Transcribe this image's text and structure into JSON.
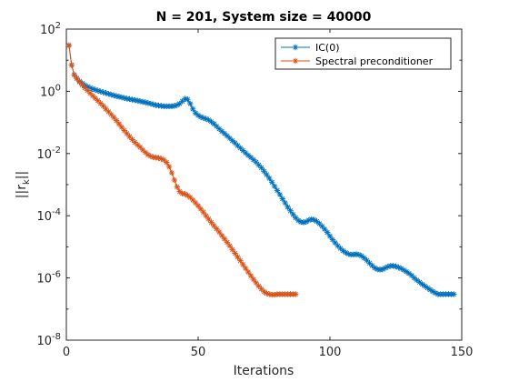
{
  "chart_data": {
    "type": "line",
    "title": "N = 201, System size = 40000",
    "xlabel": "Iterations",
    "ylabel": "||r_k||",
    "xlim": [
      0,
      150
    ],
    "ylim": [
      1e-08,
      100
    ],
    "y_scale": "log",
    "grid": false,
    "legend_position": "top-right",
    "x_ticks": [
      0,
      50,
      100,
      150
    ],
    "y_tick_exponents": [
      -8,
      -6,
      -4,
      -2,
      0,
      2
    ],
    "series": [
      {
        "name": "IC(0)",
        "color": "#0072BD",
        "marker": "asterisk",
        "x": [
          1,
          2,
          3,
          4,
          5,
          6,
          7,
          8,
          9,
          10,
          11,
          12,
          13,
          14,
          15,
          16,
          17,
          18,
          19,
          20,
          21,
          22,
          23,
          24,
          25,
          26,
          27,
          28,
          29,
          30,
          31,
          32,
          33,
          34,
          35,
          36,
          37,
          38,
          39,
          40,
          41,
          42,
          43,
          44,
          45,
          46,
          47,
          48,
          49,
          50,
          51,
          52,
          53,
          54,
          55,
          56,
          57,
          58,
          59,
          60,
          61,
          62,
          63,
          64,
          65,
          66,
          67,
          68,
          69,
          70,
          71,
          72,
          73,
          74,
          75,
          76,
          77,
          78,
          79,
          80,
          81,
          82,
          83,
          84,
          85,
          86,
          87,
          88,
          89,
          90,
          91,
          92,
          93,
          94,
          95,
          96,
          97,
          98,
          99,
          100,
          101,
          102,
          103,
          104,
          105,
          106,
          107,
          108,
          109,
          110,
          111,
          112,
          113,
          114,
          115,
          116,
          117,
          118,
          119,
          120,
          121,
          122,
          123,
          124,
          125,
          126,
          127,
          128,
          129,
          130,
          131,
          132,
          133,
          134,
          135,
          136,
          137,
          138,
          139,
          140,
          141,
          142,
          143,
          144,
          145,
          146,
          147
        ],
        "y": [
          30.0,
          7.0,
          3.4,
          2.6,
          2.1,
          1.8,
          1.58,
          1.41,
          1.29,
          1.2,
          1.12,
          1.05,
          0.99,
          0.93,
          0.88,
          0.83,
          0.78,
          0.74,
          0.7,
          0.67,
          0.64,
          0.61,
          0.58,
          0.56,
          0.54,
          0.52,
          0.5,
          0.48,
          0.46,
          0.44,
          0.42,
          0.4,
          0.38,
          0.36,
          0.35,
          0.34,
          0.33,
          0.33,
          0.33,
          0.33,
          0.34,
          0.36,
          0.4,
          0.48,
          0.57,
          0.55,
          0.4,
          0.27,
          0.2,
          0.17,
          0.15,
          0.14,
          0.13,
          0.12,
          0.105,
          0.09,
          0.075,
          0.062,
          0.052,
          0.044,
          0.037,
          0.031,
          0.026,
          0.022,
          0.018,
          0.015,
          0.0125,
          0.0105,
          0.0088,
          0.0075,
          0.0063,
          0.0053,
          0.0043,
          0.0035,
          0.0027,
          0.0021,
          0.0016,
          0.0012,
          0.00088,
          0.00065,
          0.00048,
          0.00035,
          0.00026,
          0.00019,
          0.000145,
          0.00011,
          8.6e-05,
          7.1e-05,
          6.3e-05,
          6.1e-05,
          6.4e-05,
          7.2e-05,
          7.7e-05,
          7.4e-05,
          6.6e-05,
          5.6e-05,
          4.6e-05,
          3.7e-05,
          2.9e-05,
          2.2e-05,
          1.7e-05,
          1.35e-05,
          1.08e-05,
          8.9e-06,
          7.5e-06,
          6.5e-06,
          5.9e-06,
          5.6e-06,
          5.7e-06,
          5.8e-06,
          5.6e-06,
          5.1e-06,
          4.4e-06,
          3.7e-06,
          3e-06,
          2.5e-06,
          2.1e-06,
          1.9e-06,
          1.85e-06,
          1.9e-06,
          2.1e-06,
          2.3e-06,
          2.45e-06,
          2.45e-06,
          2.35e-06,
          2.2e-06,
          2e-06,
          1.8e-06,
          1.6e-06,
          1.4e-06,
          1.2e-06,
          1e-06,
          8.5e-07,
          7.3e-07,
          6.3e-07,
          5.5e-07,
          4.8e-07,
          4.2e-07,
          3.7e-07,
          3.3e-07,
          3e-07,
          3e-07,
          3e-07,
          3e-07,
          3e-07,
          3e-07,
          3e-07
        ]
      },
      {
        "name": "Spectral preconditioner",
        "color": "#D95319",
        "marker": "asterisk",
        "x": [
          1,
          2,
          3,
          4,
          5,
          6,
          7,
          8,
          9,
          10,
          11,
          12,
          13,
          14,
          15,
          16,
          17,
          18,
          19,
          20,
          21,
          22,
          23,
          24,
          25,
          26,
          27,
          28,
          29,
          30,
          31,
          32,
          33,
          34,
          35,
          36,
          37,
          38,
          39,
          40,
          41,
          42,
          43,
          44,
          45,
          46,
          47,
          48,
          49,
          50,
          51,
          52,
          53,
          54,
          55,
          56,
          57,
          58,
          59,
          60,
          61,
          62,
          63,
          64,
          65,
          66,
          67,
          68,
          69,
          70,
          71,
          72,
          73,
          74,
          75,
          76,
          77,
          78,
          79,
          80,
          81,
          82,
          83,
          84,
          85,
          86,
          87
        ],
        "y": [
          30.0,
          7.0,
          3.4,
          2.6,
          2.0,
          1.6,
          1.3,
          1.07,
          0.88,
          0.72,
          0.6,
          0.5,
          0.41,
          0.34,
          0.27,
          0.22,
          0.18,
          0.145,
          0.115,
          0.09,
          0.07,
          0.055,
          0.044,
          0.035,
          0.028,
          0.023,
          0.019,
          0.016,
          0.013,
          0.0108,
          0.0092,
          0.0082,
          0.0076,
          0.0074,
          0.0072,
          0.0068,
          0.0062,
          0.0052,
          0.0038,
          0.0024,
          0.0014,
          0.00085,
          0.0006,
          0.00052,
          0.0005,
          0.00045,
          0.00039,
          0.00032,
          0.00026,
          0.00021,
          0.000165,
          0.00013,
          0.0001,
          7.8e-05,
          6.1e-05,
          4.8e-05,
          3.8e-05,
          3e-05,
          2.3e-05,
          1.8e-05,
          1.4e-05,
          1.08e-05,
          8.2e-06,
          6.2e-06,
          4.7e-06,
          3.6e-06,
          2.7e-06,
          2.05e-06,
          1.55e-06,
          1.18e-06,
          9e-07,
          7e-07,
          5.5e-07,
          4.4e-07,
          3.6e-07,
          3.2e-07,
          3e-07,
          2.9e-07,
          2.9e-07,
          3e-07,
          3e-07,
          3e-07,
          3e-07,
          3e-07,
          3e-07,
          3e-07,
          3e-07
        ]
      }
    ]
  }
}
